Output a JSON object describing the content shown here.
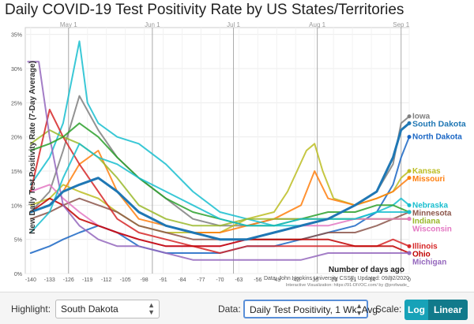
{
  "title": "Daily COVID-19 Test Positivity Rate by US States/Territories",
  "chart_data": {
    "type": "line",
    "ylabel": "New Daily Test Positivity Rate (7-Day Average)",
    "xlabel": "Number of days ago",
    "xlim": [
      -142,
      0
    ],
    "ylim": [
      0,
      36
    ],
    "x_ticks": [
      -140,
      -133,
      -126,
      -119,
      -112,
      -105,
      -98,
      -91,
      -84,
      -77,
      -70,
      -63,
      -56,
      -49,
      -42,
      -35,
      -28,
      -21,
      -14,
      -7,
      0
    ],
    "y_ticks": [
      0,
      5,
      10,
      15,
      20,
      25,
      30,
      35
    ],
    "y_tick_labels": [
      "0%",
      "5%",
      "10%",
      "15%",
      "20%",
      "25%",
      "30%",
      "35%"
    ],
    "month_markers": [
      {
        "label": "May 1",
        "x": -126
      },
      {
        "label": "Jun 1",
        "x": -95
      },
      {
        "label": "Jul 1",
        "x": -65
      },
      {
        "label": "Aug 1",
        "x": -34
      },
      {
        "label": "Sep 1",
        "x": -3
      }
    ],
    "source_note": "Data: John Hopkins University CSSE; Updated: 09/02/2020",
    "credit_note": "Interactive Visualization: https://91-DIVOC.com/ by @profwade_",
    "grid": true,
    "highlighted": "South Dakota",
    "series": [
      {
        "name": "Iowa",
        "color": "#7f7f7f",
        "label": true,
        "x": [
          -140,
          -133,
          -128,
          -122,
          -115,
          -108,
          -100,
          -90,
          -80,
          -70,
          -60,
          -50,
          -40,
          -30,
          -20,
          -12,
          -6,
          -3,
          0
        ],
        "y": [
          9,
          12,
          18,
          26,
          21,
          17,
          14,
          11,
          8,
          7,
          7,
          8,
          8,
          8,
          10,
          12,
          16,
          22,
          23
        ]
      },
      {
        "name": "South Dakota",
        "color": "#1f77b4",
        "label": true,
        "x": [
          -140,
          -133,
          -128,
          -122,
          -115,
          -108,
          -100,
          -90,
          -80,
          -70,
          -60,
          -50,
          -40,
          -30,
          -20,
          -12,
          -6,
          -3,
          0
        ],
        "y": [
          9,
          10,
          12,
          13,
          14,
          12,
          9,
          7,
          6,
          5,
          5,
          6,
          7,
          8,
          10,
          12,
          17,
          21,
          22
        ]
      },
      {
        "name": "North Dakota",
        "color": "#1a66c4",
        "label": true,
        "x": [
          -140,
          -133,
          -128,
          -122,
          -115,
          -108,
          -100,
          -90,
          -80,
          -70,
          -60,
          -50,
          -40,
          -30,
          -20,
          -12,
          -6,
          -3,
          0
        ],
        "y": [
          3,
          4,
          5,
          6,
          7,
          6,
          4,
          3,
          3,
          3,
          4,
          4,
          5,
          6,
          7,
          9,
          13,
          17,
          20
        ]
      },
      {
        "name": "Kansas",
        "color": "#bcbd22",
        "label": true,
        "x": [
          -140,
          -133,
          -128,
          -122,
          -115,
          -108,
          -100,
          -90,
          -80,
          -70,
          -60,
          -50,
          -45,
          -38,
          -35,
          -32,
          -28,
          -20,
          -12,
          -6,
          -3,
          0
        ],
        "y": [
          10,
          11,
          13,
          12,
          11,
          9,
          7,
          6,
          6,
          6,
          8,
          9,
          12,
          18,
          19,
          15,
          11,
          10,
          11,
          12,
          14,
          15
        ]
      },
      {
        "name": "Missouri",
        "color": "#ff7f0e",
        "label": true,
        "x": [
          -140,
          -133,
          -128,
          -122,
          -115,
          -108,
          -100,
          -90,
          -80,
          -70,
          -60,
          -50,
          -40,
          -35,
          -30,
          -20,
          -12,
          -6,
          -3,
          0
        ],
        "y": [
          9,
          10,
          12,
          16,
          18,
          12,
          8,
          7,
          6,
          6,
          7,
          8,
          10,
          15,
          11,
          10,
          11,
          12,
          13,
          14
        ]
      },
      {
        "name": "Nebraska",
        "color": "#17becf",
        "label": true,
        "x": [
          -140,
          -133,
          -128,
          -122,
          -119,
          -115,
          -108,
          -100,
          -90,
          -80,
          -70,
          -60,
          -50,
          -40,
          -30,
          -20,
          -12,
          -6,
          -3,
          0
        ],
        "y": [
          13,
          17,
          22,
          34,
          25,
          22,
          20,
          19,
          16,
          12,
          9,
          8,
          7,
          7,
          8,
          8,
          9,
          10,
          11,
          10
        ]
      },
      {
        "name": "Minnesota",
        "color": "#8c564b",
        "label": true,
        "x": [
          -140,
          -133,
          -128,
          -122,
          -115,
          -108,
          -100,
          -90,
          -80,
          -70,
          -60,
          -50,
          -40,
          -30,
          -20,
          -12,
          -6,
          0
        ],
        "y": [
          8,
          9,
          10,
          11,
          10,
          9,
          7,
          6,
          5,
          5,
          5,
          5,
          5,
          6,
          6,
          7,
          8,
          9
        ]
      },
      {
        "name": "Indiana",
        "color": "#9ab82a",
        "label": true,
        "x": [
          -140,
          -133,
          -128,
          -122,
          -115,
          -108,
          -100,
          -90,
          -80,
          -70,
          -60,
          -50,
          -40,
          -30,
          -20,
          -12,
          -6,
          0
        ],
        "y": [
          19,
          21,
          20,
          19,
          17,
          14,
          10,
          8,
          7,
          7,
          8,
          8,
          8,
          8,
          8,
          8,
          8,
          8
        ]
      },
      {
        "name": "Wisconsin",
        "color": "#e377c2",
        "label": true,
        "x": [
          -140,
          -133,
          -128,
          -122,
          -115,
          -108,
          -100,
          -90,
          -80,
          -70,
          -60,
          -50,
          -40,
          -30,
          -20,
          -12,
          -6,
          0
        ],
        "y": [
          12,
          13,
          11,
          9,
          7,
          6,
          5,
          4,
          4,
          4,
          5,
          6,
          7,
          7,
          8,
          8,
          8,
          8
        ]
      },
      {
        "name": "Illinois",
        "color": "#d62728",
        "label": true,
        "x": [
          -140,
          -133,
          -128,
          -122,
          -115,
          -108,
          -100,
          -90,
          -80,
          -70,
          -60,
          -50,
          -40,
          -30,
          -20,
          -12,
          -6,
          0
        ],
        "y": [
          12,
          24,
          20,
          16,
          12,
          8,
          6,
          5,
          4,
          3,
          4,
          4,
          4,
          4,
          4,
          4,
          5,
          4
        ]
      },
      {
        "name": "Ohio",
        "color": "#c00000",
        "label": true,
        "x": [
          -140,
          -133,
          -128,
          -122,
          -115,
          -108,
          -100,
          -90,
          -80,
          -70,
          -60,
          -50,
          -40,
          -30,
          -20,
          -12,
          -6,
          0
        ],
        "y": [
          9,
          11,
          10,
          8,
          7,
          6,
          5,
          4,
          4,
          4,
          5,
          5,
          5,
          5,
          4,
          4,
          4,
          3
        ]
      },
      {
        "name": "Michigan",
        "color": "#9467bd",
        "label": true,
        "x": [
          -141,
          -137,
          -133,
          -128,
          -122,
          -115,
          -108,
          -100,
          -90,
          -80,
          -70,
          -60,
          -50,
          -40,
          -30,
          -20,
          -12,
          -6,
          0
        ],
        "y": [
          31,
          31,
          20,
          10,
          7,
          5,
          4,
          4,
          3,
          2,
          2,
          2,
          2,
          2,
          3,
          3,
          3,
          3,
          3
        ]
      },
      {
        "name": "",
        "color": "#2ca02c",
        "label": false,
        "x": [
          -140,
          -133,
          -128,
          -122,
          -115,
          -108,
          -100,
          -90,
          -80,
          -70,
          -60,
          -50,
          -40,
          -30,
          -20,
          -12,
          -6,
          0
        ],
        "y": [
          18,
          19,
          20,
          22,
          20,
          17,
          14,
          11,
          9,
          8,
          7,
          7,
          8,
          9,
          9,
          10,
          10,
          9
        ]
      },
      {
        "name": "",
        "color": "#17becf",
        "label": false,
        "x": [
          -140,
          -133,
          -128,
          -122,
          -115,
          -108,
          -100,
          -90,
          -80,
          -70,
          -60,
          -50,
          -40,
          -30,
          -20,
          -12,
          -6,
          0
        ],
        "y": [
          6,
          9,
          14,
          19,
          17,
          16,
          14,
          12,
          10,
          8,
          7,
          7,
          8,
          8,
          8,
          9,
          9,
          9
        ]
      }
    ]
  },
  "controls": {
    "highlight_label": "Highlight:",
    "highlight_value": "South Dakota",
    "data_label": "Data:",
    "data_value": "Daily Test Positivity, 1 Wk. Avg.",
    "scale_label": "Scale:",
    "log_label": "Log",
    "linear_label": "Linear",
    "chevron_up": "▲",
    "chevron_down": "▼"
  }
}
